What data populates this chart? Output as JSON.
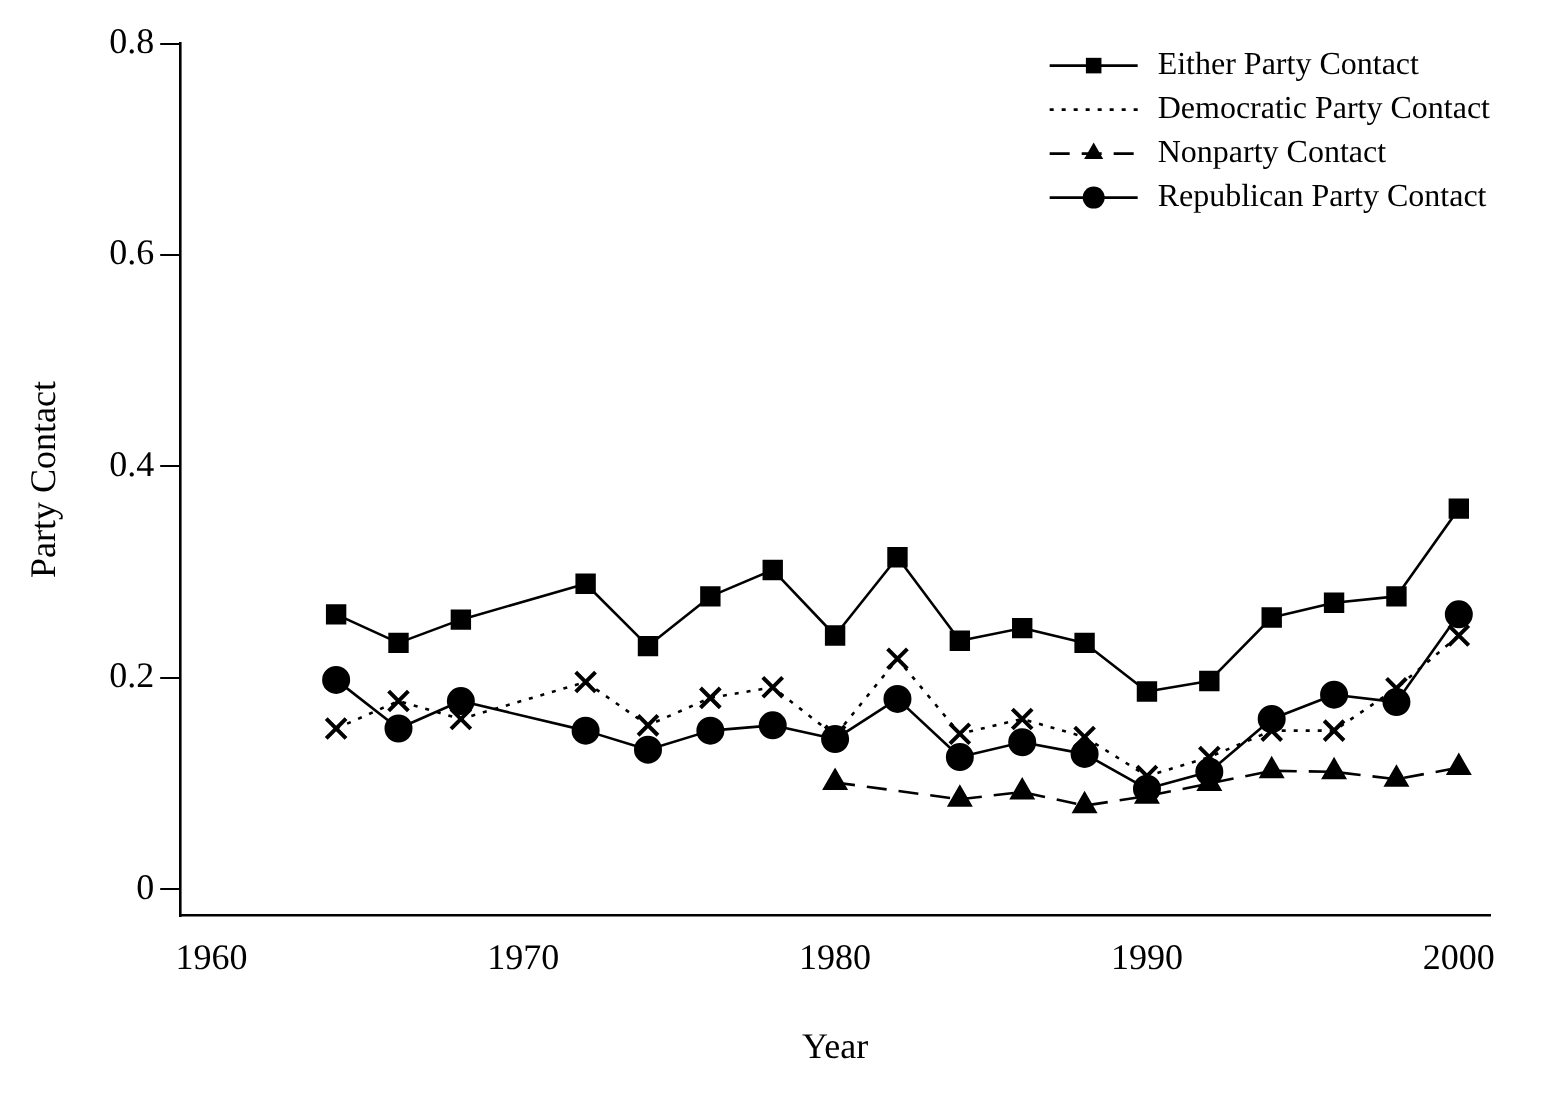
{
  "chart_data": {
    "type": "line",
    "xlabel": "Year",
    "ylabel": "Party Contact",
    "x": [
      1964,
      1966,
      1968,
      1972,
      1974,
      1976,
      1978,
      1980,
      1982,
      1984,
      1986,
      1988,
      1990,
      1992,
      1994,
      1996,
      1998,
      2000
    ],
    "xlim": [
      1959,
      2001
    ],
    "xticks": [
      1960,
      1970,
      1980,
      1990,
      2000
    ],
    "ylim": [
      -0.025,
      0.8
    ],
    "yticks": [
      0,
      0.2,
      0.4,
      0.6,
      0.8
    ],
    "legend": "top right",
    "grid": false,
    "series": [
      {
        "name": "Either Party Contact",
        "color": "#000000",
        "marker": "square",
        "line_style": "solid",
        "values": [
          0.26,
          0.233,
          0.255,
          0.289,
          0.23,
          0.277,
          0.302,
          0.24,
          0.314,
          0.235,
          0.247,
          0.233,
          0.187,
          0.197,
          0.257,
          0.271,
          0.277,
          0.36
        ]
      },
      {
        "name": "Democratic Party Contact",
        "color": "#000000",
        "marker": "cross",
        "line_style": "dotted",
        "values": [
          0.152,
          0.178,
          0.161,
          0.196,
          0.155,
          0.181,
          0.191,
          0.145,
          0.218,
          0.147,
          0.161,
          0.144,
          0.107,
          0.125,
          0.15,
          0.15,
          0.19,
          0.24
        ]
      },
      {
        "name": "Nonparty Contact",
        "color": "#000000",
        "marker": "triangle",
        "line_style": "dashed",
        "values": [
          null,
          null,
          null,
          null,
          null,
          null,
          null,
          0.101,
          null,
          0.085,
          0.092,
          0.079,
          0.088,
          0.1,
          0.112,
          0.111,
          0.104,
          0.115
        ]
      },
      {
        "name": "Republican Party Contact",
        "color": "#000000",
        "marker": "circle",
        "line_style": "solid",
        "values": [
          0.198,
          0.152,
          0.178,
          0.15,
          0.132,
          0.15,
          0.155,
          0.142,
          0.18,
          0.125,
          0.139,
          0.128,
          0.095,
          0.111,
          0.161,
          0.184,
          0.177,
          0.26
        ]
      }
    ]
  }
}
